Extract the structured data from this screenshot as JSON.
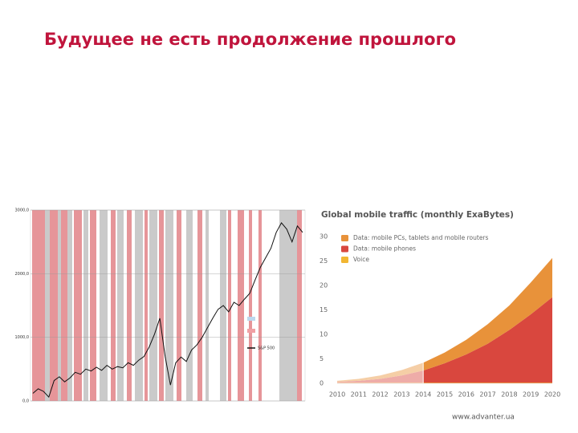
{
  "header": {
    "title": "Будущее не есть продолжение прошлого"
  },
  "footer": {
    "site": "www.advanter.ua"
  },
  "chart_data": [
    {
      "type": "line",
      "series": [
        {
          "name": "S&P 500",
          "color": "#111111",
          "values": [
            120,
            190,
            150,
            60,
            320,
            380,
            300,
            360,
            450,
            420,
            500,
            470,
            530,
            480,
            560,
            500,
            540,
            520,
            600,
            560,
            640,
            700,
            850,
            1050,
            1300,
            700,
            250,
            600,
            690,
            620,
            800,
            880,
            1000,
            1150,
            1300,
            1440,
            1500,
            1400,
            1550,
            1500,
            1600,
            1690,
            1900,
            2100,
            2250,
            2400,
            2650,
            2800,
            2700,
            2500,
            2750,
            2650
          ]
        }
      ],
      "ylim": [
        0,
        3000
      ],
      "yticks": [
        {
          "value": 0,
          "label": "0,0"
        },
        {
          "value": 1000,
          "label": "1000,0"
        },
        {
          "value": 2000,
          "label": "2000,0"
        },
        {
          "value": 3000,
          "label": "3000,0"
        }
      ]
    },
    {
      "type": "area",
      "title": "Global mobile traffic (monthly ExaBytes)",
      "categories": [
        "2010",
        "2011",
        "2012",
        "2013",
        "2014",
        "2015",
        "2016",
        "2017",
        "2018",
        "2019",
        "2020"
      ],
      "series": [
        {
          "name": "Data: mobile PCs, tablets and mobile routers",
          "color": "#e8923a",
          "values": [
            0.2,
            0.4,
            0.7,
            1.1,
            1.6,
            2.2,
            3,
            4,
            5,
            6.5,
            8
          ]
        },
        {
          "name": "Data: mobile phones",
          "color": "#d9473e",
          "values": [
            0.2,
            0.4,
            0.8,
            1.5,
            2.5,
            4,
            5.8,
            8,
            10.8,
            14,
            17.5
          ]
        },
        {
          "name": "Voice",
          "color": "#f2b632",
          "values": [
            0.1,
            0.1,
            0.1,
            0.1,
            0.1,
            0.1,
            0.1,
            0.1,
            0.1,
            0.1,
            0.1
          ]
        }
      ],
      "ylim": [
        0,
        30
      ],
      "yticks": [
        0,
        5,
        10,
        15,
        20,
        25,
        30
      ]
    }
  ]
}
